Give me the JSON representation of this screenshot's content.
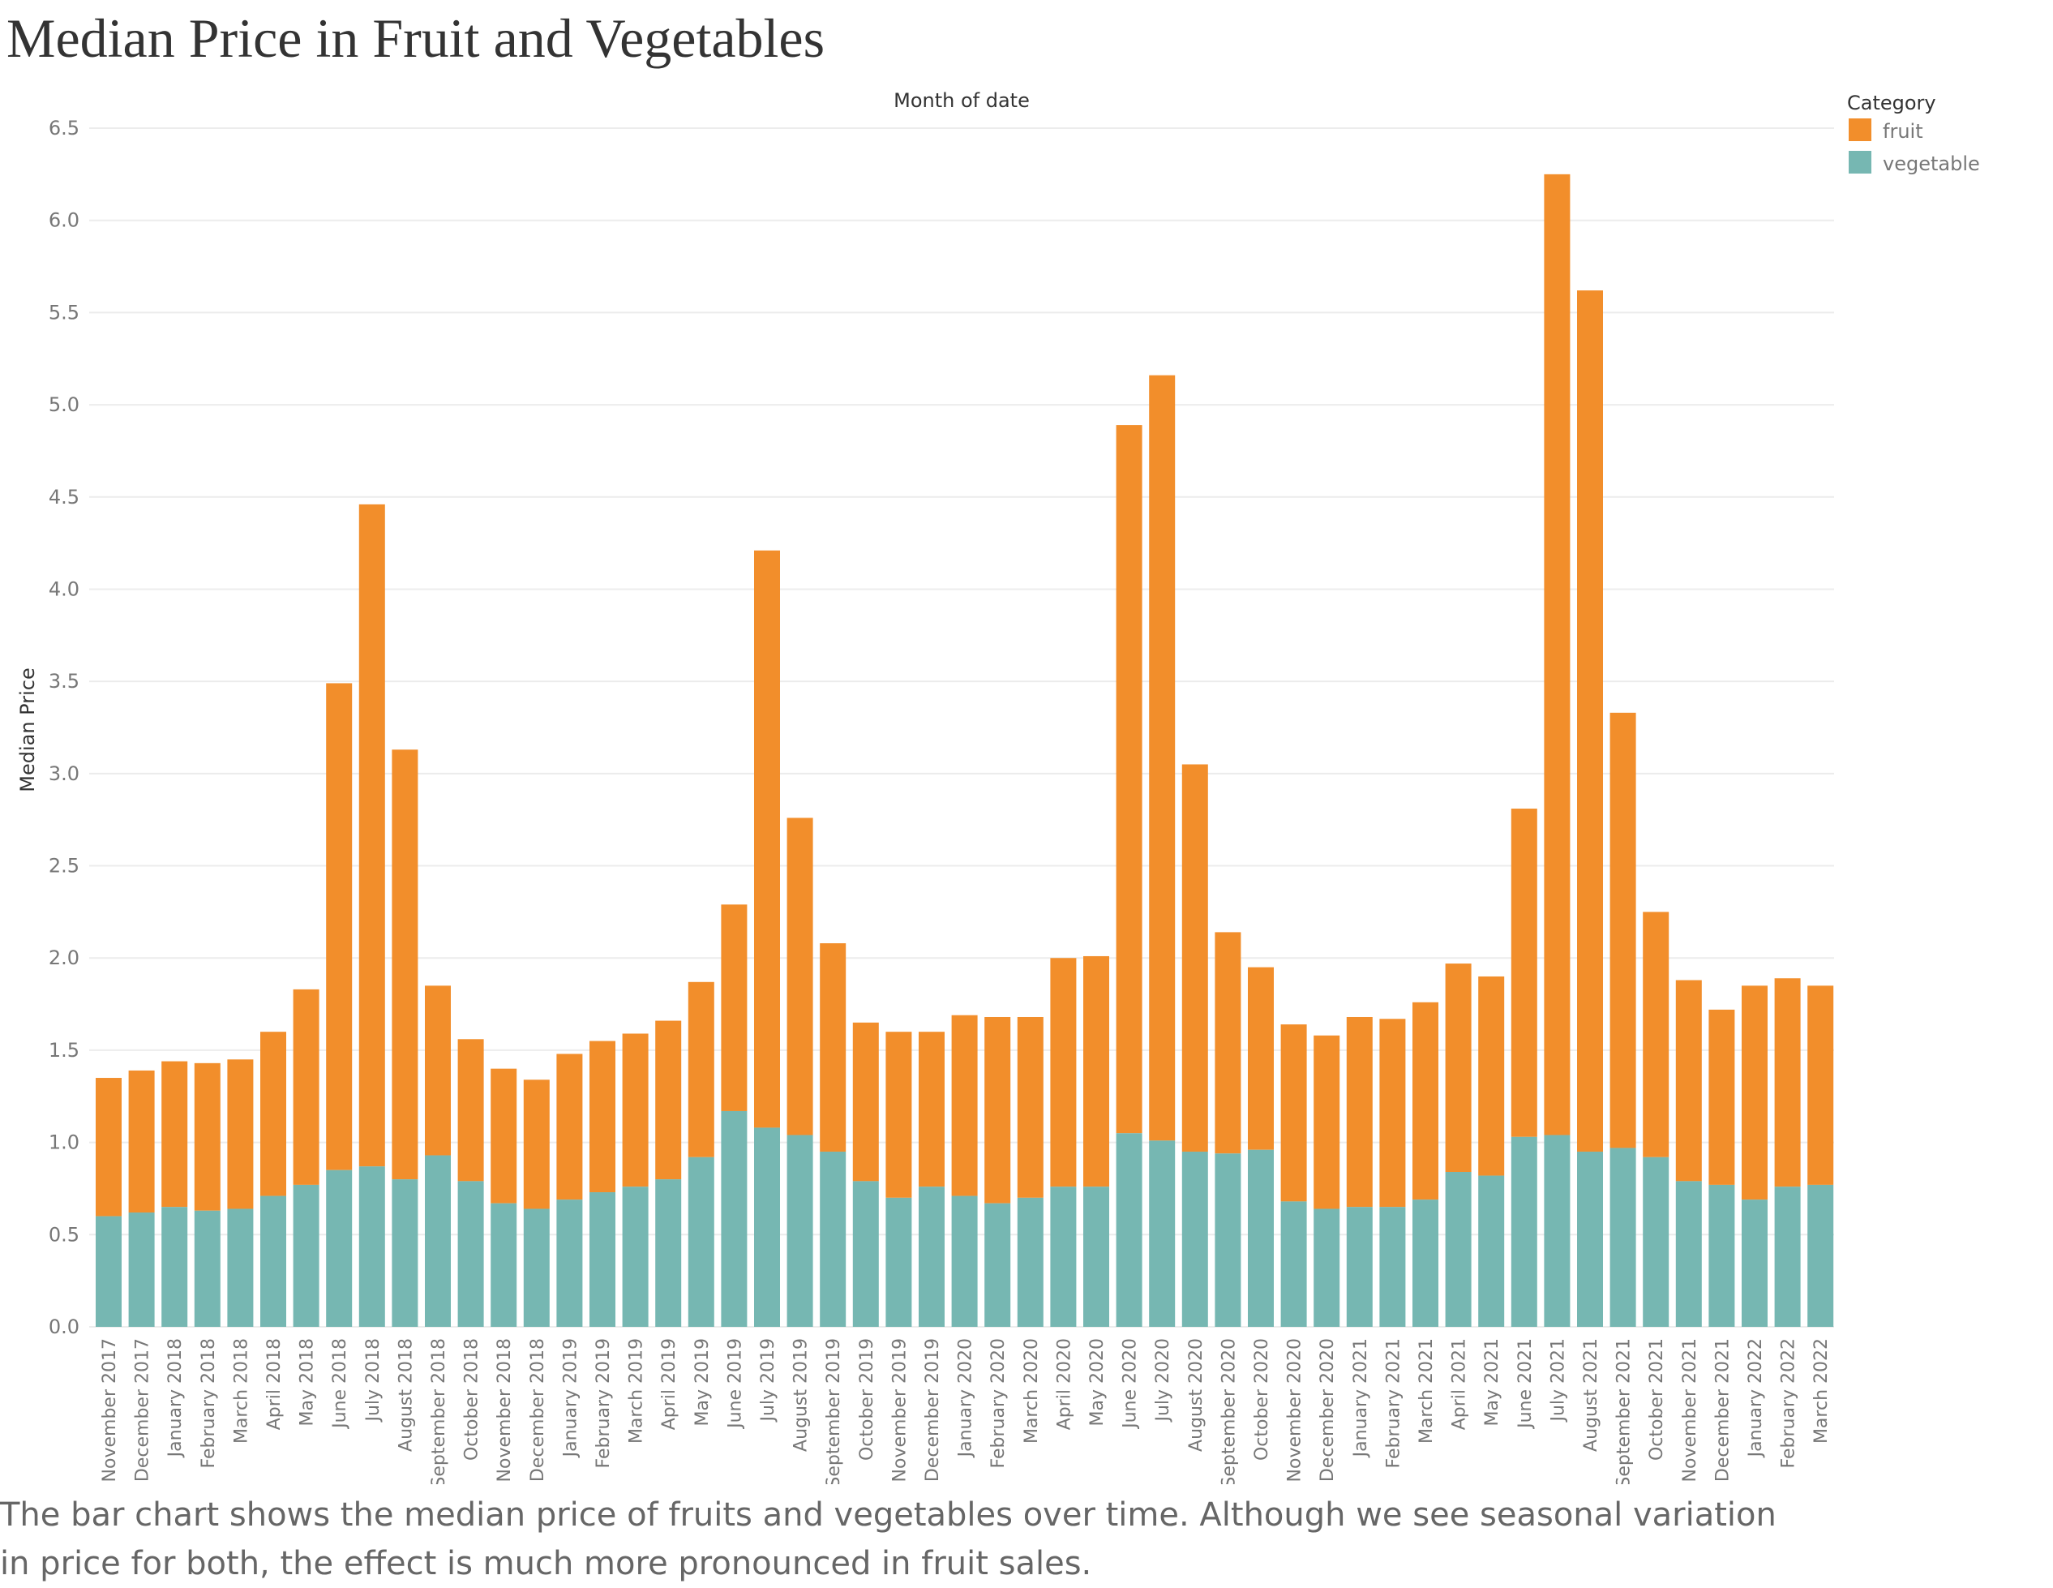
{
  "title": "Median Price in Fruit and Vegetables",
  "caption": "The bar chart shows the median price of fruits and vegetables over time.  Although we see seasonal variation in price for both, the effect is much more pronounced in fruit sales.",
  "colors": {
    "fruit": "#f28e2b",
    "vegetable": "#76b7b2",
    "grid": "#ececec",
    "axis_text": "#777777",
    "label_text": "#333333"
  },
  "chart_data": {
    "type": "bar",
    "stacked": true,
    "title": "Median Price in Fruit and Vegetables",
    "column_header": "Month of date",
    "ylabel": "Median Price",
    "ylim": [
      0,
      6.5
    ],
    "yticks": [
      "0.0",
      "0.5",
      "1.0",
      "1.5",
      "2.0",
      "2.5",
      "3.0",
      "3.5",
      "4.0",
      "4.5",
      "5.0",
      "5.5",
      "6.0",
      "6.5"
    ],
    "legend": {
      "title": "Category",
      "position": "top-right",
      "entries": [
        "fruit",
        "vegetable"
      ]
    },
    "categories": [
      "November 2017",
      "December 2017",
      "January 2018",
      "February 2018",
      "March 2018",
      "April 2018",
      "May 2018",
      "June 2018",
      "July 2018",
      "August 2018",
      "September 2018",
      "October 2018",
      "November 2018",
      "December 2018",
      "January 2019",
      "February 2019",
      "March 2019",
      "April 2019",
      "May 2019",
      "June 2019",
      "July 2019",
      "August 2019",
      "September 2019",
      "October 2019",
      "November 2019",
      "December 2019",
      "January 2020",
      "February 2020",
      "March 2020",
      "April 2020",
      "May 2020",
      "June 2020",
      "July 2020",
      "August 2020",
      "September 2020",
      "October 2020",
      "November 2020",
      "December 2020",
      "January 2021",
      "February 2021",
      "March 2021",
      "April 2021",
      "May 2021",
      "June 2021",
      "July 2021",
      "August 2021",
      "September 2021",
      "October 2021",
      "November 2021",
      "December 2021",
      "January 2022",
      "February 2022",
      "March 2022"
    ],
    "series": [
      {
        "name": "vegetable",
        "values": [
          0.6,
          0.62,
          0.65,
          0.63,
          0.64,
          0.71,
          0.77,
          0.85,
          0.87,
          0.8,
          0.93,
          0.79,
          0.67,
          0.64,
          0.69,
          0.73,
          0.76,
          0.8,
          0.92,
          1.17,
          1.08,
          1.04,
          0.95,
          0.79,
          0.7,
          0.76,
          0.71,
          0.67,
          0.7,
          0.76,
          0.76,
          1.05,
          1.01,
          0.95,
          0.94,
          0.96,
          0.68,
          0.64,
          0.65,
          0.65,
          0.69,
          0.84,
          0.82,
          1.03,
          1.04,
          0.95,
          0.97,
          0.92,
          0.79,
          0.77,
          0.69,
          0.76,
          0.77
        ]
      },
      {
        "name": "fruit",
        "values": [
          0.75,
          0.77,
          0.79,
          0.8,
          0.81,
          0.89,
          1.06,
          2.64,
          3.59,
          2.33,
          0.92,
          0.77,
          0.73,
          0.7,
          0.79,
          0.82,
          0.83,
          0.86,
          0.95,
          1.12,
          3.13,
          1.72,
          1.13,
          0.86,
          0.9,
          0.84,
          0.98,
          1.01,
          0.98,
          1.24,
          1.25,
          3.84,
          4.15,
          2.1,
          1.2,
          0.99,
          0.96,
          0.94,
          1.03,
          1.02,
          1.07,
          1.13,
          1.08,
          1.78,
          5.21,
          4.67,
          2.36,
          1.33,
          1.09,
          0.95,
          1.16,
          1.13,
          1.08
        ]
      }
    ]
  }
}
